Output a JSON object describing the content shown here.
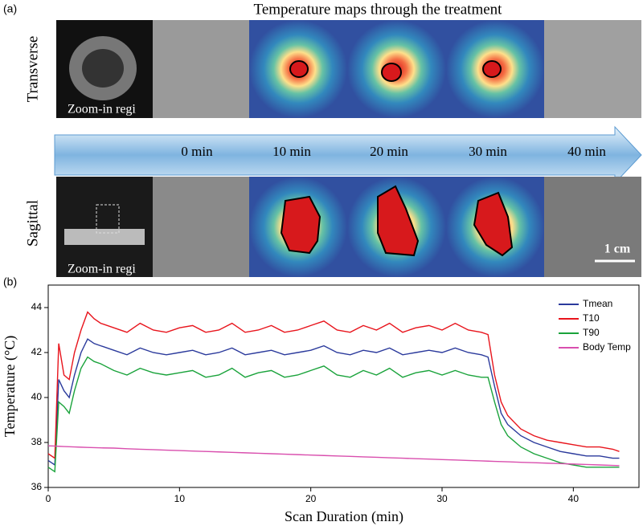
{
  "panel_a": {
    "label": "(a)",
    "title": "Temperature maps through the treatment",
    "row_labels": [
      "Transverse",
      "Sagittal"
    ],
    "zoom_labels": [
      "Zoom-in regi",
      "Zoom-in regi"
    ],
    "times": [
      "0 min",
      "10 min",
      "20 min",
      "30 min",
      "40 min"
    ],
    "scale_bar": "1 cm"
  },
  "chart_data": {
    "type": "line",
    "panel_label": "(b)",
    "x_label": "Scan Duration (min)",
    "y_label": "Temperature (°C)",
    "x": [
      0,
      0.5,
      0.8,
      1.2,
      1.6,
      2,
      2.5,
      3,
      3.5,
      4,
      5,
      6,
      7,
      8,
      9,
      10,
      11,
      12,
      13,
      14,
      15,
      16,
      17,
      18,
      19,
      20,
      21,
      22,
      23,
      24,
      25,
      26,
      27,
      28,
      29,
      30,
      31,
      32,
      33,
      33.5,
      34,
      34.5,
      35,
      36,
      37,
      38,
      39,
      40,
      41,
      42,
      43,
      43.5
    ],
    "series": [
      {
        "name": "Tmean",
        "color": "#2b3a9c",
        "values": [
          37.2,
          37.0,
          40.8,
          40.3,
          40.0,
          41.0,
          42.0,
          42.6,
          42.4,
          42.3,
          42.1,
          41.9,
          42.2,
          42.0,
          41.9,
          42.0,
          42.1,
          41.9,
          42.0,
          42.2,
          41.9,
          42.0,
          42.1,
          41.9,
          42.0,
          42.1,
          42.3,
          42.0,
          41.9,
          42.1,
          42.0,
          42.2,
          41.9,
          42.0,
          42.1,
          42.0,
          42.2,
          42.0,
          41.9,
          41.8,
          40.5,
          39.3,
          38.8,
          38.3,
          38.0,
          37.8,
          37.6,
          37.5,
          37.4,
          37.4,
          37.3,
          37.3
        ]
      },
      {
        "name": "T10",
        "color": "#e8141c",
        "values": [
          37.5,
          37.3,
          42.4,
          41.0,
          40.8,
          42.0,
          43.0,
          43.8,
          43.5,
          43.3,
          43.1,
          42.9,
          43.3,
          43.0,
          42.9,
          43.1,
          43.2,
          42.9,
          43.0,
          43.3,
          42.9,
          43.0,
          43.2,
          42.9,
          43.0,
          43.2,
          43.4,
          43.0,
          42.9,
          43.2,
          43.0,
          43.3,
          42.9,
          43.1,
          43.2,
          43.0,
          43.3,
          43.0,
          42.9,
          42.8,
          41.0,
          39.8,
          39.2,
          38.6,
          38.3,
          38.1,
          38.0,
          37.9,
          37.8,
          37.8,
          37.7,
          37.6
        ]
      },
      {
        "name": "T90",
        "color": "#1aa33b",
        "values": [
          36.9,
          36.7,
          39.8,
          39.6,
          39.3,
          40.3,
          41.3,
          41.8,
          41.6,
          41.5,
          41.2,
          41.0,
          41.3,
          41.1,
          41.0,
          41.1,
          41.2,
          40.9,
          41.0,
          41.3,
          40.9,
          41.1,
          41.2,
          40.9,
          41.0,
          41.2,
          41.4,
          41.0,
          40.9,
          41.2,
          41.0,
          41.3,
          40.9,
          41.1,
          41.2,
          41.0,
          41.2,
          41.0,
          40.9,
          40.9,
          39.8,
          38.8,
          38.3,
          37.8,
          37.5,
          37.3,
          37.1,
          37.0,
          36.9,
          36.9,
          36.9,
          36.9
        ]
      },
      {
        "name": "Body Temp",
        "color": "#d94fae",
        "values": [
          37.85,
          37.84,
          37.83,
          37.82,
          37.81,
          37.8,
          37.79,
          37.78,
          37.77,
          37.76,
          37.75,
          37.72,
          37.7,
          37.68,
          37.66,
          37.64,
          37.62,
          37.6,
          37.58,
          37.56,
          37.54,
          37.52,
          37.5,
          37.48,
          37.46,
          37.44,
          37.42,
          37.4,
          37.38,
          37.36,
          37.34,
          37.32,
          37.3,
          37.28,
          37.26,
          37.24,
          37.22,
          37.2,
          37.18,
          37.17,
          37.16,
          37.15,
          37.14,
          37.12,
          37.1,
          37.08,
          37.06,
          37.04,
          37.02,
          37.0,
          36.98,
          36.97
        ]
      }
    ],
    "xlim": [
      0,
      45
    ],
    "xticks": [
      0,
      10,
      20,
      30,
      40
    ],
    "ylim": [
      36,
      45
    ],
    "yticks": [
      36,
      38,
      40,
      42,
      44
    ],
    "legend": "top-right"
  }
}
